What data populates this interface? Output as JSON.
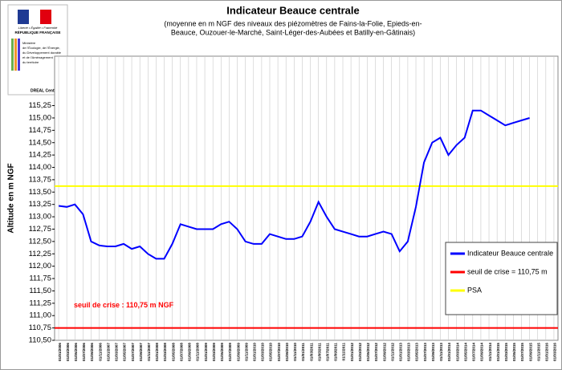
{
  "chart_data": {
    "type": "line",
    "title": "Indicateur Beauce centrale",
    "subtitle": [
      "(moyenne en m NGF des niveaux des piézomètres de Fains-la-Folie, Epieds-en-",
      "Beauce, Ouzouer-le-Marché, Saint-Léger-des-Aubées et Batilly-en-Gâtinais)"
    ],
    "ylabel": "Altitude en m NGF",
    "annotation": "seuil de crise : 110,75 m NGF",
    "logo": {
      "motto": "Liberté • Égalité • Fraternité",
      "republic": "RÉPUBLIQUE FRANÇAISE",
      "ministry": [
        "Ministère",
        "de l'Écologie, de l'Énergie,",
        "du Développement durable",
        "et de l'Aménagement",
        "du territoire"
      ],
      "dreal": "DREAL Centre"
    },
    "categories": [
      "01/01/2006",
      "01/03/2006",
      "01/05/2006",
      "01/07/2006",
      "01/09/2006",
      "01/11/2006",
      "01/01/2007",
      "01/03/2007",
      "01/05/2007",
      "01/07/2007",
      "01/09/2007",
      "01/11/2007",
      "01/01/2008",
      "01/03/2008",
      "01/05/2008",
      "01/07/2008",
      "01/09/2008",
      "01/11/2008",
      "01/01/2009",
      "01/03/2009",
      "01/05/2009",
      "01/07/2009",
      "01/09/2009",
      "01/11/2009",
      "01/01/2010",
      "01/03/2010",
      "01/05/2010",
      "01/07/2010",
      "01/09/2010",
      "01/11/2010",
      "01/01/2011",
      "01/03/2011",
      "01/05/2011",
      "01/07/2011",
      "01/09/2011",
      "01/11/2011",
      "01/01/2012",
      "01/03/2012",
      "01/05/2012",
      "01/07/2012",
      "01/09/2012",
      "01/11/2012",
      "01/01/2013",
      "01/03/2013",
      "01/05/2013",
      "01/07/2013",
      "01/09/2013",
      "01/11/2013",
      "01/01/2014",
      "01/03/2014",
      "01/05/2014",
      "01/07/2014",
      "01/09/2014",
      "01/11/2014",
      "01/01/2015",
      "01/03/2015",
      "01/05/2015",
      "01/07/2015",
      "01/09/2015",
      "01/11/2015",
      "01/01/2016",
      "01/03/2016"
    ],
    "series": [
      {
        "name": "Indicateur Beauce centrale",
        "color": "#0000ff",
        "values": [
          113.22,
          113.2,
          113.25,
          113.05,
          112.5,
          112.42,
          112.4,
          112.4,
          112.45,
          112.35,
          112.4,
          112.25,
          112.15,
          112.15,
          112.45,
          112.85,
          112.8,
          112.75,
          112.75,
          112.75,
          112.85,
          112.9,
          112.75,
          112.5,
          112.45,
          112.45,
          112.65,
          112.6,
          112.55,
          112.55,
          112.6,
          112.9,
          113.3,
          113.0,
          112.75,
          112.7,
          112.65,
          112.6,
          112.6,
          112.65,
          112.7,
          112.65,
          112.3,
          112.5,
          113.2,
          114.1,
          114.5,
          114.6,
          114.25,
          114.45,
          114.6,
          115.15,
          115.15,
          115.05,
          114.95,
          114.85,
          114.9,
          114.95,
          115.0,
          null,
          null,
          null
        ]
      }
    ],
    "hlines": [
      {
        "name": "seuil de crise = 110,75 m",
        "value": 110.75,
        "color": "#ff0000"
      },
      {
        "name": "PSA",
        "value": 113.62,
        "color": "#ffff00"
      }
    ],
    "ylim": [
      110.5,
      116.25
    ],
    "yticks": [
      {
        "value": 110.5,
        "label": "110,50"
      },
      {
        "value": 110.75,
        "label": "110,75"
      },
      {
        "value": 111,
        "label": "111,00"
      },
      {
        "value": 111.25,
        "label": "111,25"
      },
      {
        "value": 111.5,
        "label": "111,50"
      },
      {
        "value": 111.75,
        "label": "111,75"
      },
      {
        "value": 112,
        "label": "112,00"
      },
      {
        "value": 112.25,
        "label": "112,25"
      },
      {
        "value": 112.5,
        "label": "112,50"
      },
      {
        "value": 112.75,
        "label": "112,75"
      },
      {
        "value": 113,
        "label": "113,00"
      },
      {
        "value": 113.25,
        "label": "113,25"
      },
      {
        "value": 113.5,
        "label": "113,50"
      },
      {
        "value": 113.75,
        "label": "113,75"
      },
      {
        "value": 114,
        "label": "114,00"
      },
      {
        "value": 114.25,
        "label": "114,25"
      },
      {
        "value": 114.5,
        "label": "114,50"
      },
      {
        "value": 114.75,
        "label": "114,75"
      },
      {
        "value": 115,
        "label": "115,00"
      },
      {
        "value": 115.25,
        "label": "115,25"
      }
    ],
    "grid": "x",
    "legend": "lower right"
  }
}
